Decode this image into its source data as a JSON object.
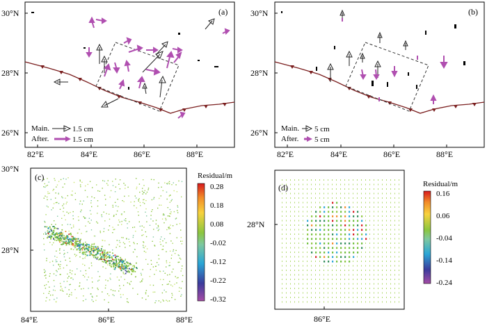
{
  "figure": {
    "panels": [
      {
        "id": "a",
        "label": "(a)",
        "yticks": [
          "30°N",
          "28°N",
          "26°N"
        ],
        "xticks": [
          "82°E",
          "84°E",
          "86°E",
          "88°E"
        ],
        "legend": {
          "main_label": "Main.",
          "main_value": "1.5 cm",
          "after_label": "After.",
          "after_value": "1.5 cm"
        }
      },
      {
        "id": "b",
        "label": "(b)",
        "yticks": [
          "30°N",
          "28°N",
          "26°N"
        ],
        "xticks": [
          "82°E",
          "84°E",
          "86°E",
          "88°E"
        ],
        "legend": {
          "main_label": "Main.",
          "main_value": "5 cm",
          "after_label": "After.",
          "after_value": "5 cm"
        }
      },
      {
        "id": "c",
        "label": "(c)",
        "yticks": [
          "30°N",
          "28°N"
        ],
        "xticks": [
          "84°E",
          "86°E",
          "88°E"
        ],
        "colorbar": {
          "title": "Residual/m",
          "ticks": [
            "0.28",
            "0.18",
            "0.08",
            "-0.02",
            "-0.12",
            "-0.22",
            "-0.32"
          ]
        }
      },
      {
        "id": "d",
        "label": "(d)",
        "yticks": [
          "28°N"
        ],
        "xticks": [
          "86°E"
        ],
        "colorbar": {
          "title": "Residual/m",
          "ticks": [
            "0.16",
            "0.06",
            "-0.04",
            "-0.14",
            "-0.24"
          ]
        }
      }
    ],
    "colors": {
      "mainshock_arrow": "#ffffff",
      "aftershock_arrow": "#b04fb0",
      "fault_trace": "#7a1e1e",
      "box_outline": "#333333"
    }
  }
}
